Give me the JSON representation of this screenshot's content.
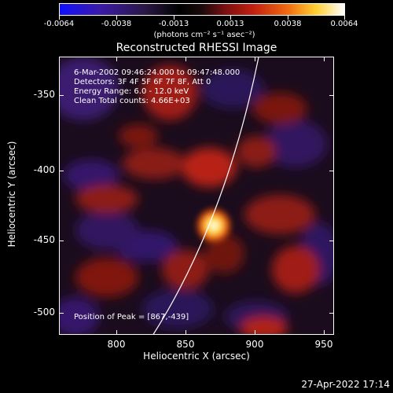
{
  "colorbar": {
    "ticks": [
      "-0.0064",
      "-0.0038",
      "-0.0013",
      "0.0013",
      "0.0038",
      "0.0064"
    ],
    "unit": "(photons cm⁻² s⁻¹ asec⁻²)"
  },
  "title": "Reconstructed RHESSI Image",
  "info": {
    "line1": "6-Mar-2002 09:46:24.000 to 09:47:48.000",
    "line2": "Detectors: 3F 4F 5F 6F 7F 8F, Att 0",
    "line3": "Energy Range: 6.0 - 12.0 keV",
    "line4": "Clean    Total counts: 4.66E+03",
    "peak": "Position of Peak = [867,-439]"
  },
  "axes": {
    "xlabel": "Heliocentric X (arcsec)",
    "ylabel": "Heliocentric Y (arcsec)",
    "xticks": [
      "800",
      "850",
      "900",
      "950"
    ],
    "yticks": [
      "-350",
      "-400",
      "-450",
      "-500"
    ]
  },
  "timestamp": "27-Apr-2022 17:14"
}
